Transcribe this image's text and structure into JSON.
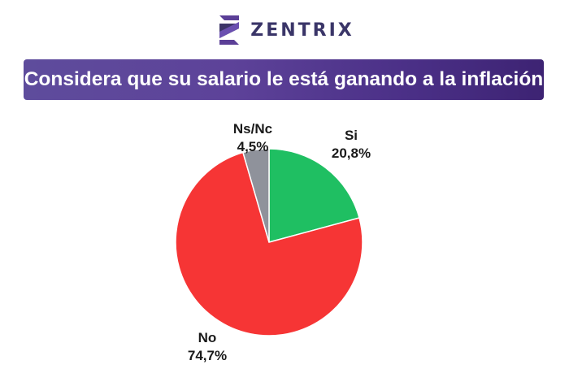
{
  "brand": {
    "name": "ZENTRIX",
    "icon": "zentrix-logo-icon",
    "color": "#3a3568"
  },
  "chart_data": {
    "type": "pie",
    "title": "¿Considera que su salario le está ganando a la inflación?",
    "start": "12 o'clock",
    "direction": "clockwise",
    "slices": [
      {
        "label": "Si",
        "value": 20.8,
        "value_label": "20,8%",
        "color": "#1fbf62"
      },
      {
        "label": "No",
        "value": 74.7,
        "value_label": "74,7%",
        "color": "#f63535"
      },
      {
        "label": "Ns/Nc",
        "value": 4.5,
        "value_label": "4,5%",
        "color": "#8f929b"
      }
    ]
  }
}
